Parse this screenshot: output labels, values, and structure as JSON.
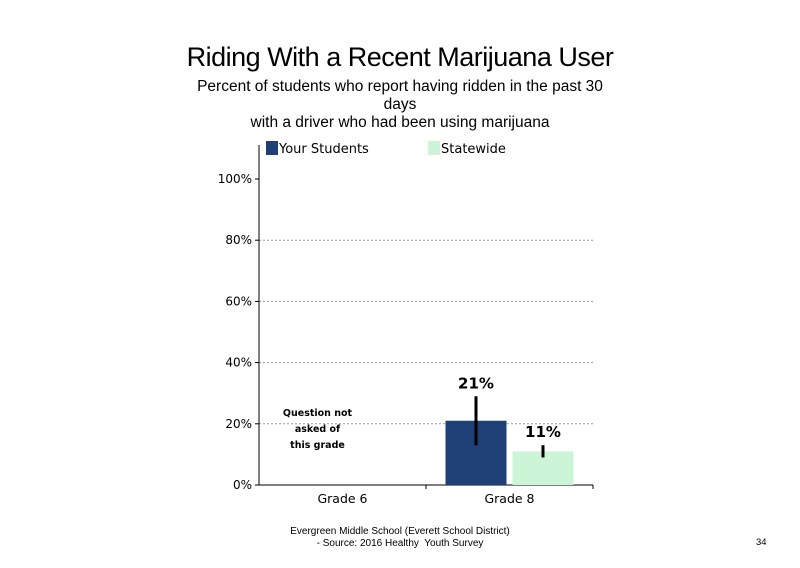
{
  "chart_data": {
    "type": "bar",
    "title": "Riding With a Recent Marijuana User",
    "subtitle_lines": [
      "Percent of students who report having ridden in the past 30",
      "days",
      "with a driver who had been using marijuana"
    ],
    "categories": [
      "Grade 6",
      "Grade 8"
    ],
    "series": [
      {
        "name": "Your Students",
        "color": "#1f4077",
        "values": [
          null,
          21
        ],
        "labels": [
          "",
          "21%"
        ],
        "error_low": [
          null,
          13
        ],
        "error_high": [
          null,
          29
        ]
      },
      {
        "name": "Statewide",
        "color": "#ccf5d8",
        "values": [
          null,
          11
        ],
        "labels": [
          "",
          "11%"
        ],
        "error_low": [
          null,
          9
        ],
        "error_high": [
          null,
          13
        ]
      }
    ],
    "ylim": [
      0,
      100
    ],
    "y_ticks": [
      0,
      20,
      40,
      60,
      80,
      100
    ],
    "y_tick_labels": [
      "0%",
      "20%",
      "40%",
      "60%",
      "80%",
      "100%"
    ],
    "grid": "dotted horizontal",
    "legend_position": "top",
    "notes": [
      {
        "category": "Grade 6",
        "lines": [
          "Question not",
          "asked of",
          "this grade"
        ]
      }
    ]
  },
  "footer": {
    "line1": "Evergreen Middle School (Everett School District)",
    "line2": "- Source: 2016 Healthy  Youth Survey"
  },
  "page_number": "34"
}
